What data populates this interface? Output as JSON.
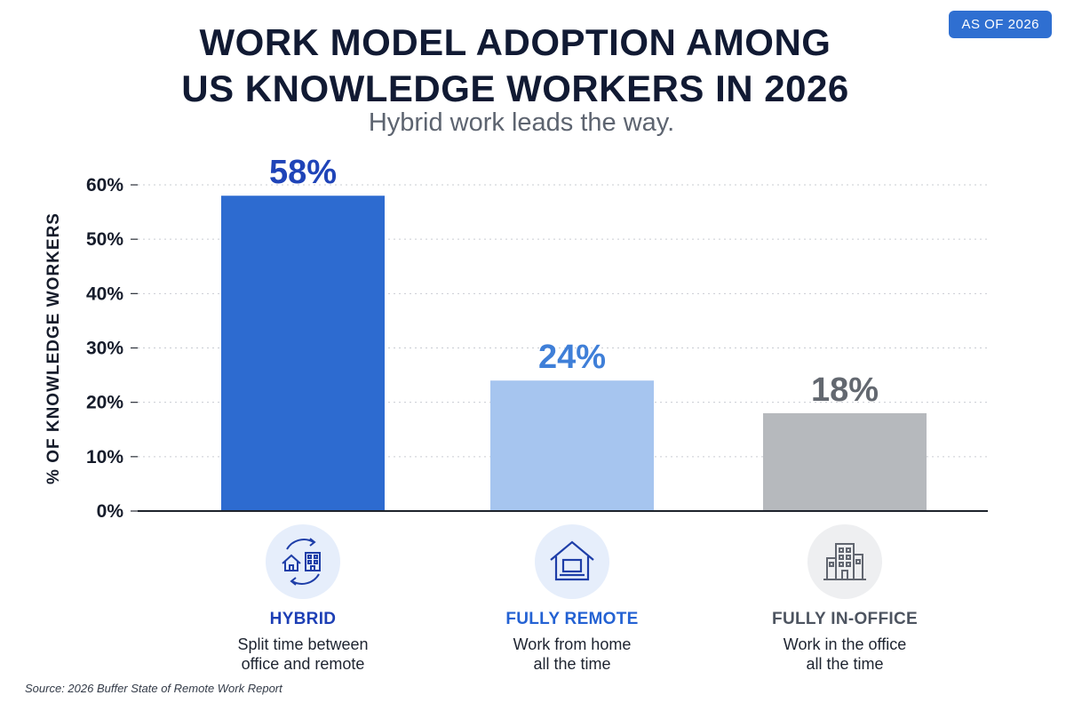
{
  "badge": "AS OF 2026",
  "title_line1": "WORK MODEL ADOPTION AMONG",
  "title_line2": "US KNOWLEDGE WORKERS IN 2026",
  "subtitle": "Hybrid work leads the way.",
  "source": "Source: 2026 Buffer State of Remote Work Report",
  "chart_data": {
    "type": "bar",
    "title": "WORK MODEL ADOPTION AMONG US KNOWLEDGE WORKERS IN 2026",
    "subtitle": "Hybrid work leads the way.",
    "ylabel": "% OF KNOWLEDGE WORKERS",
    "xlabel": "",
    "ylim": [
      0,
      60
    ],
    "yticks": [
      0,
      10,
      20,
      30,
      40,
      50,
      60
    ],
    "ytick_labels": [
      "0%",
      "10%",
      "20%",
      "30%",
      "40%",
      "50%",
      "60%"
    ],
    "grid": true,
    "categories": [
      "HYBRID",
      "FULLY REMOTE",
      "FULLY IN-OFFICE"
    ],
    "values": [
      58,
      24,
      18
    ],
    "value_labels": [
      "58%",
      "24%",
      "18%"
    ],
    "descriptions": [
      [
        "Split time between",
        "office and remote"
      ],
      [
        "Work from home",
        "all the time"
      ],
      [
        "Work in the office",
        "all the time"
      ]
    ],
    "bar_colors": [
      "#2d6bd0",
      "#a6c5ef",
      "#b6b9bd"
    ],
    "label_colors": [
      "#1f44b8",
      "#3f7fd8",
      "#636870"
    ],
    "name_colors": [
      "#1d3fb5",
      "#2462d3",
      "#4d5460"
    ],
    "icon_bg_colors": [
      "#e6eefb",
      "#e6eefb",
      "#eeeff1"
    ],
    "icon_colors": [
      "#1e3ea8",
      "#1e3ea8",
      "#616670"
    ],
    "icons": [
      "home-office-cycle-icon",
      "house-laptop-icon",
      "office-building-icon"
    ]
  }
}
